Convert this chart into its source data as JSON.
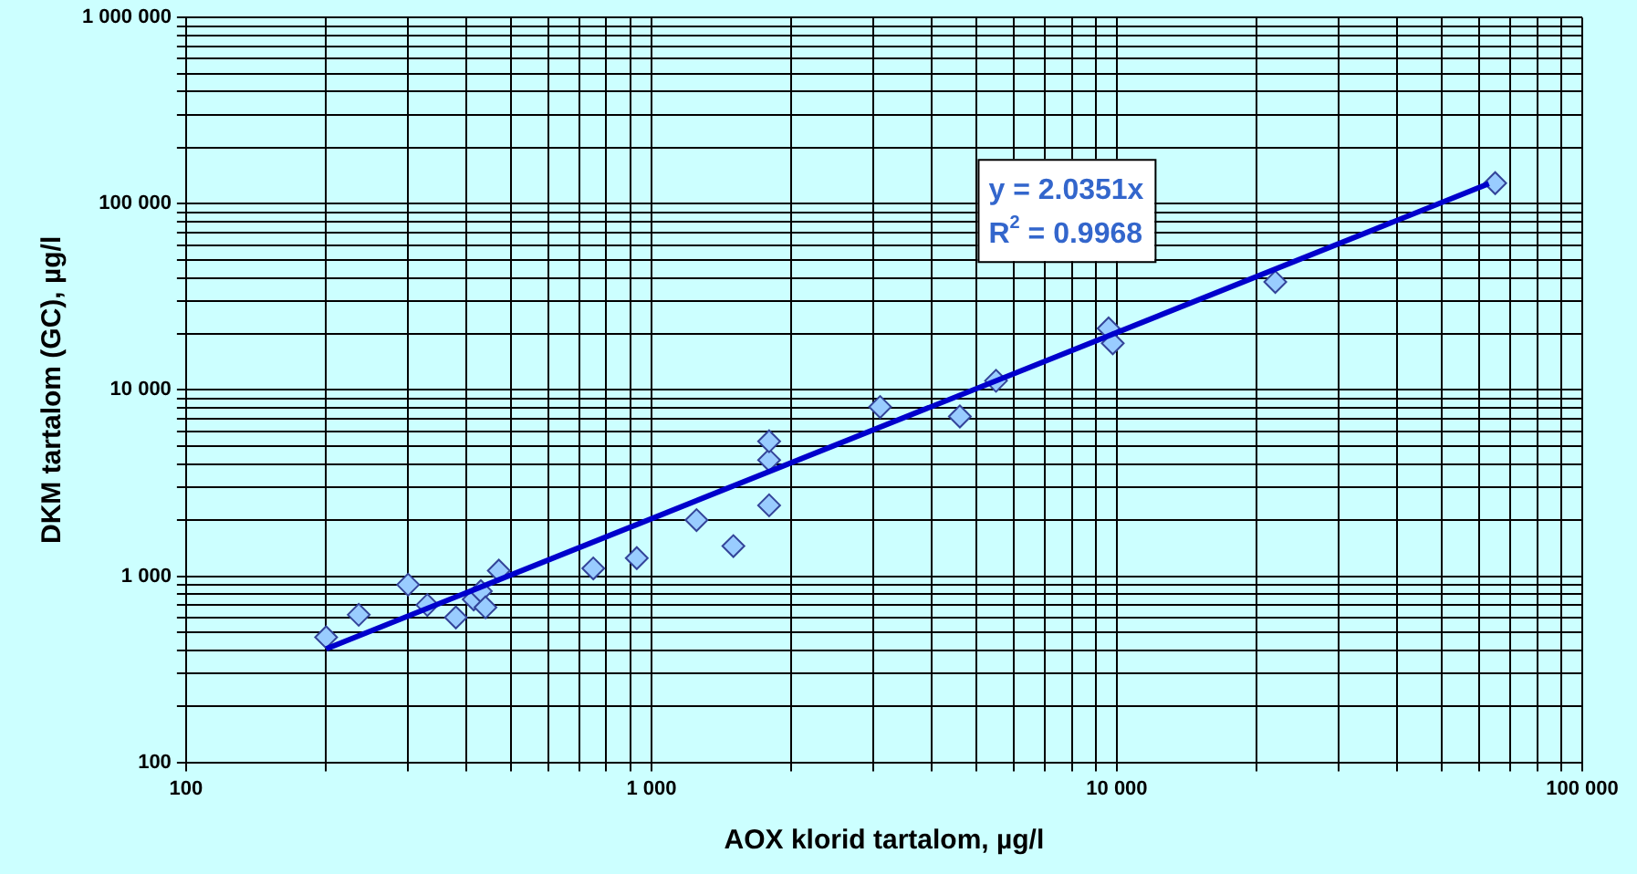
{
  "chart_data": {
    "type": "scatter",
    "xlabel": "AOX klorid tartalom, µg/l",
    "ylabel": "DKM tartalom (GC), µg/l",
    "log": "xy",
    "grid": true,
    "legend": false,
    "marker": "diamond",
    "xlim": [
      100,
      100000
    ],
    "ylim": [
      100,
      1000000
    ],
    "xticks": [
      100,
      {
        "value": 200,
        "label": null
      },
      {
        "value": 300,
        "label": null
      },
      {
        "value": 400,
        "label": null
      },
      {
        "value": 500,
        "label": null
      },
      {
        "value": 600,
        "label": null
      },
      {
        "value": 700,
        "label": null
      },
      {
        "value": 800,
        "label": null
      },
      {
        "value": 900,
        "label": null
      },
      {
        "value": 1000,
        "label": "1 000"
      },
      {
        "value": 2000,
        "label": null
      },
      {
        "value": 3000,
        "label": null
      },
      {
        "value": 4000,
        "label": null
      },
      {
        "value": 5000,
        "label": null
      },
      {
        "value": 6000,
        "label": null
      },
      {
        "value": 7000,
        "label": null
      },
      {
        "value": 8000,
        "label": null
      },
      {
        "value": 9000,
        "label": null
      },
      {
        "value": 10000,
        "label": "10 000"
      },
      {
        "value": 20000,
        "label": null
      },
      {
        "value": 30000,
        "label": null
      },
      {
        "value": 40000,
        "label": null
      },
      {
        "value": 50000,
        "label": null
      },
      {
        "value": 60000,
        "label": null
      },
      {
        "value": 70000,
        "label": null
      },
      {
        "value": 80000,
        "label": null
      },
      {
        "value": 90000,
        "label": null
      },
      {
        "value": 100000,
        "label": "100 000"
      }
    ],
    "yticks": [
      100,
      {
        "value": 200,
        "label": null
      },
      {
        "value": 300,
        "label": null
      },
      {
        "value": 400,
        "label": null
      },
      {
        "value": 500,
        "label": null
      },
      {
        "value": 600,
        "label": null
      },
      {
        "value": 700,
        "label": null
      },
      {
        "value": 800,
        "label": null
      },
      {
        "value": 900,
        "label": null
      },
      {
        "value": 1000,
        "label": "1 000"
      },
      {
        "value": 2000,
        "label": null
      },
      {
        "value": 3000,
        "label": null
      },
      {
        "value": 4000,
        "label": null
      },
      {
        "value": 5000,
        "label": null
      },
      {
        "value": 6000,
        "label": null
      },
      {
        "value": 7000,
        "label": null
      },
      {
        "value": 8000,
        "label": null
      },
      {
        "value": 9000,
        "label": null
      },
      {
        "value": 10000,
        "label": "10 000"
      },
      {
        "value": 20000,
        "label": null
      },
      {
        "value": 30000,
        "label": null
      },
      {
        "value": 40000,
        "label": null
      },
      {
        "value": 50000,
        "label": null
      },
      {
        "value": 60000,
        "label": null
      },
      {
        "value": 70000,
        "label": null
      },
      {
        "value": 80000,
        "label": null
      },
      {
        "value": 90000,
        "label": null
      },
      {
        "value": 100000,
        "label": "100 000"
      },
      {
        "value": 200000,
        "label": null
      },
      {
        "value": 300000,
        "label": null
      },
      {
        "value": 400000,
        "label": null
      },
      {
        "value": 500000,
        "label": null
      },
      {
        "value": 600000,
        "label": null
      },
      {
        "value": 700000,
        "label": null
      },
      {
        "value": 800000,
        "label": null
      },
      {
        "value": 900000,
        "label": null
      },
      {
        "value": 1000000,
        "label": "1 000 000"
      }
    ],
    "annotations": [
      "y = 2.0351x",
      "R$^{2}$ = 0.9968"
    ],
    "series": [
      {
        "type": "scatter",
        "color": "#99ccff",
        "x": [
          200,
          235,
          300,
          330,
          380,
          415,
          430,
          440,
          470,
          750,
          930,
          1250,
          1500,
          1790,
          1790,
          1790,
          3100,
          4600,
          5500,
          9600,
          9800,
          21900,
          65000
        ],
        "values": [
          470,
          620,
          900,
          700,
          600,
          750,
          830,
          680,
          1070,
          1100,
          1250,
          2000,
          1450,
          2400,
          4200,
          5300,
          8100,
          7200,
          11200,
          21400,
          17800,
          38000,
          129000
        ]
      },
      {
        "type": "line",
        "color": "#0000cc",
        "marker": "none",
        "x": [
          200,
          63000
        ],
        "values": [
          407,
          128200
        ]
      }
    ]
  }
}
